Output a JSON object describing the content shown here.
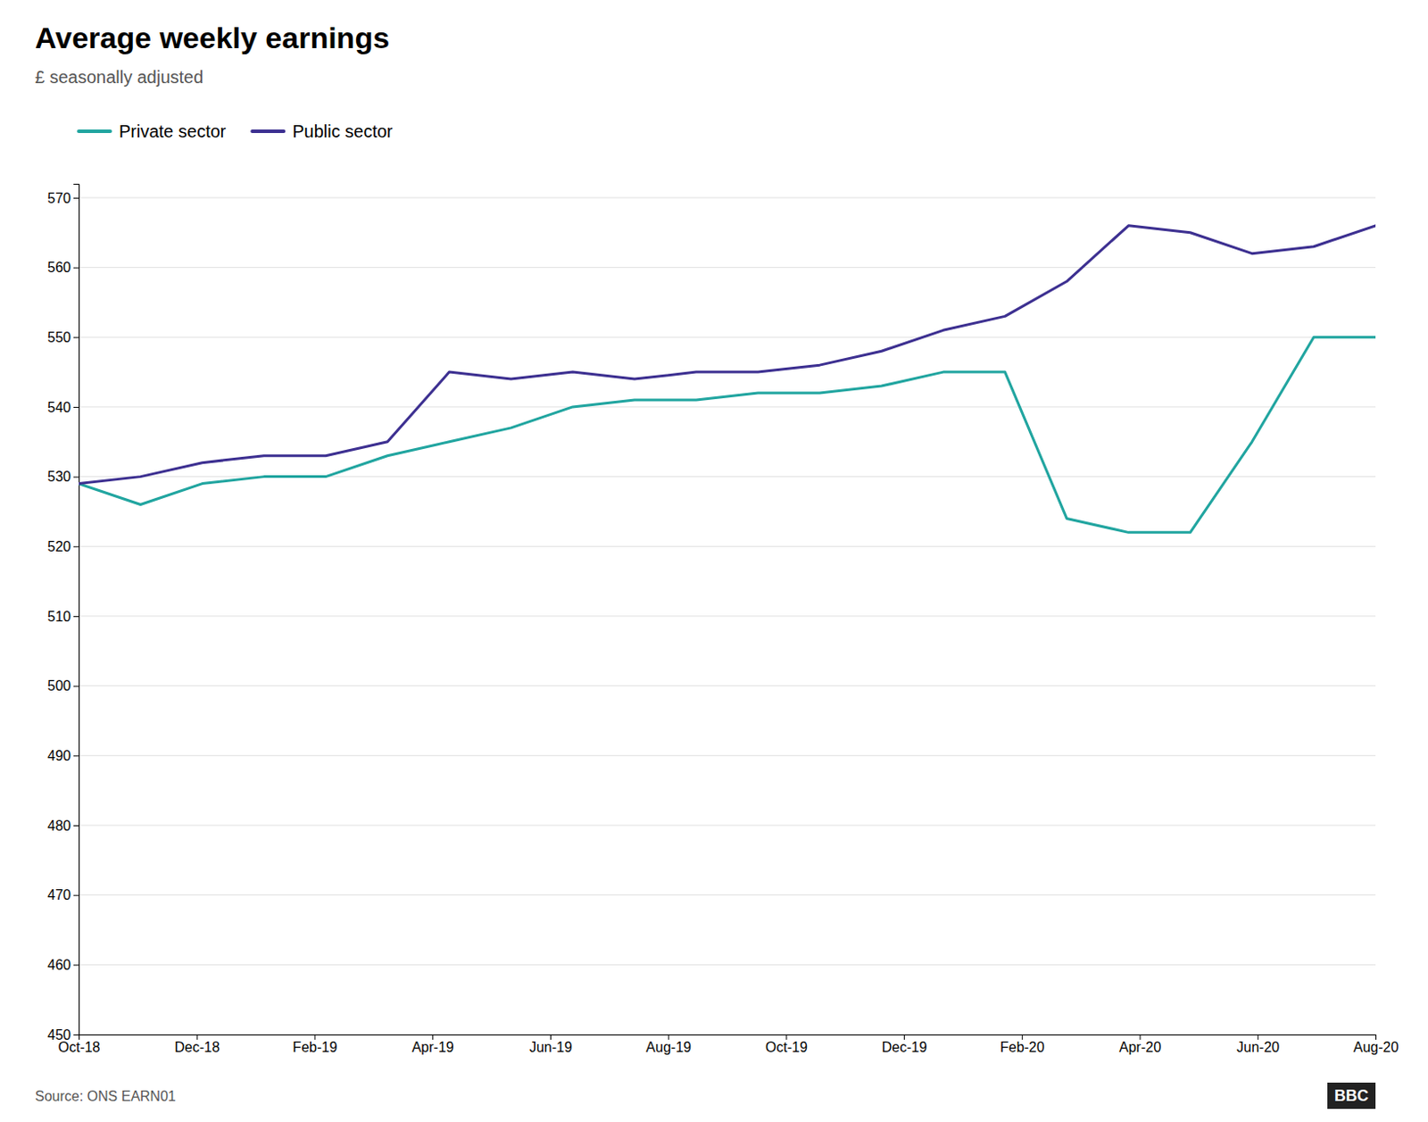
{
  "chart_data": {
    "type": "line",
    "title": "Average weekly earnings",
    "subtitle": "£ seasonally adjusted",
    "source": "Source: ONS EARN01",
    "annotations": [
      "BBC"
    ],
    "x": [
      0,
      0.5238095238095238,
      1.0476190476190477,
      1.5714285714285714,
      2.0952380952380953,
      2.619047619047619,
      3.142857142857143,
      3.6666666666666665,
      4.190476190476191,
      4.714285714285714,
      5.238095238095238,
      5.761904761904762,
      6.285714285714286,
      6.809523809523809,
      7.333333333333333,
      7.857142857142857,
      8.380952380952381,
      8.904761904761905,
      9.428571428571429,
      9.952380952380953,
      10.476190476190476,
      11
    ],
    "series": [
      {
        "name": "Private sector",
        "color": "#21a5a0",
        "values": [
          529,
          526,
          529,
          530,
          530,
          533,
          535,
          537,
          540,
          541,
          541,
          542,
          542,
          543,
          545,
          545,
          524,
          522,
          522,
          535,
          550,
          550
        ]
      },
      {
        "name": "Public sector",
        "color": "#3d3091",
        "values": [
          529,
          530,
          532,
          533,
          533,
          535,
          545,
          544,
          545,
          544,
          545,
          545,
          546,
          548,
          551,
          553,
          558,
          566,
          565,
          562,
          563,
          566
        ]
      }
    ],
    "xlim": [
      0,
      11
    ],
    "xticks": [
      {
        "value": 0,
        "label": "Oct-18"
      },
      {
        "value": 1,
        "label": "Dec-18"
      },
      {
        "value": 2,
        "label": "Feb-19"
      },
      {
        "value": 3,
        "label": "Apr-19"
      },
      {
        "value": 4,
        "label": "Jun-19"
      },
      {
        "value": 5,
        "label": "Aug-19"
      },
      {
        "value": 6,
        "label": "Oct-19"
      },
      {
        "value": 7,
        "label": "Dec-19"
      },
      {
        "value": 8,
        "label": "Feb-20"
      },
      {
        "value": 9,
        "label": "Apr-20"
      },
      {
        "value": 10,
        "label": "Jun-20"
      },
      {
        "value": 11,
        "label": "Aug-20"
      }
    ],
    "ylim": [
      450,
      572
    ],
    "yticks": [
      450,
      460,
      470,
      480,
      490,
      500,
      510,
      520,
      530,
      540,
      550,
      560,
      570
    ],
    "grid": true,
    "legend": "upper left"
  }
}
